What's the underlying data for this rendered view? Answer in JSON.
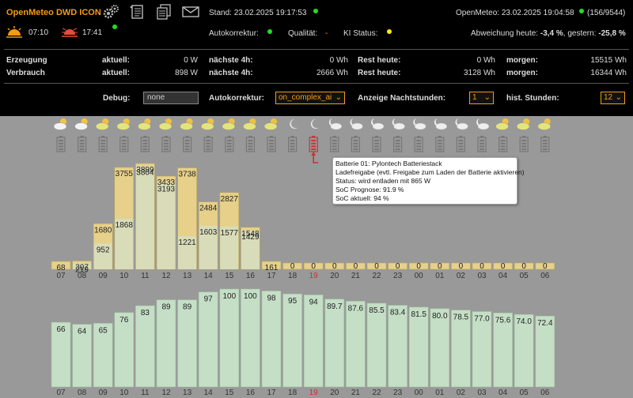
{
  "header": {
    "title": "OpenMeteo DWD ICON",
    "stand": "Stand: 23.02.2025 19:17:53",
    "openmeteo": "OpenMeteo: 23.02.2025 19:04:58",
    "counter": "(156/9544)",
    "sunrise": "07:10",
    "sunset": "17:41",
    "autokorrektur_label": "Autokorrektur:",
    "qualitaet_label": "Qualität:",
    "qualitaet_value": "-",
    "ki_label": "KI Status:",
    "abweichung_label": "Abweichung heute:",
    "abweichung_today": "-3,4 %",
    "abweichung_sep": ", gestern:",
    "abweichung_yesterday": "-25,8 %"
  },
  "stats": {
    "rows": [
      {
        "label": "Erzeugung",
        "aktuell_label": "aktuell:",
        "aktuell": "0 W",
        "next_label": "nächste 4h:",
        "next": "0 Wh",
        "rest_label": "Rest heute:",
        "rest": "0 Wh",
        "morgen_label": "morgen:",
        "morgen": "15515 Wh"
      },
      {
        "label": "Verbrauch",
        "aktuell_label": "aktuell:",
        "aktuell": "898 W",
        "next_label": "nächste 4h:",
        "next": "2666 Wh",
        "rest_label": "Rest heute:",
        "rest": "3128 Wh",
        "morgen_label": "morgen:",
        "morgen": "16344 Wh"
      }
    ]
  },
  "settings": {
    "debug_label": "Debug:",
    "debug_value": "none",
    "auto_label": "Autokorrektur:",
    "auto_value": "on_complex_ai",
    "night_label": "Anzeige Nachtstunden:",
    "night_value": "1",
    "hist_label": "hist. Stunden:",
    "hist_value": "12"
  },
  "tooltip": {
    "line1": "Batterie 01: Pylontech Batteriestack",
    "line2": "Ladefreigabe (evtl. Freigabe zum Laden der Batterie aktivieren)",
    "line3": "Status: wird entladen mit 865 W",
    "line4": "SoC Prognose: 91.9 %",
    "line5": "SoC aktuell: 94 %"
  },
  "colors": {
    "accent": "#f39c12",
    "green_dot": "#22dd22",
    "yellow_dot": "#ffee00",
    "pv_bar": "#e6d08a",
    "hist_bar": "#d8dcb9",
    "soc_bar": "#c5dfc6",
    "current_hour": "#d32f2f"
  },
  "chart_data": [
    {
      "type": "bar",
      "title": "",
      "categories": [
        "07",
        "08",
        "09",
        "10",
        "11",
        "12",
        "13",
        "14",
        "15",
        "16",
        "17",
        "18",
        "19",
        "20",
        "21",
        "22",
        "23",
        "00",
        "01",
        "02",
        "03",
        "04",
        "05",
        "06"
      ],
      "series": [
        {
          "values": [
            68,
            307,
            1680,
            3755,
            3899,
            3433,
            3738,
            2484,
            2827,
            1548,
            161,
            0,
            0,
            0,
            0,
            0,
            0,
            0,
            0,
            0,
            0,
            0,
            0,
            0
          ]
        },
        {
          "values": [
            null,
            219,
            952,
            1868,
            3804,
            3193,
            1221,
            1603,
            1577,
            1429,
            null,
            null,
            null,
            null,
            null,
            null,
            null,
            null,
            null,
            null,
            null,
            null,
            null,
            null
          ]
        }
      ],
      "highlight_category": "19"
    },
    {
      "type": "bar",
      "title": "",
      "categories": [
        "07",
        "08",
        "09",
        "10",
        "11",
        "12",
        "13",
        "14",
        "15",
        "16",
        "17",
        "18",
        "19",
        "20",
        "21",
        "22",
        "23",
        "00",
        "01",
        "02",
        "03",
        "04",
        "05",
        "06"
      ],
      "values": [
        66,
        64,
        65,
        76,
        83,
        89,
        89,
        97,
        100,
        100,
        98,
        95,
        94,
        89.7,
        87.6,
        85.5,
        83.4,
        81.5,
        80.0,
        78.5,
        77.0,
        75.6,
        74.0,
        72.4
      ],
      "value_labels": [
        "66",
        "64",
        "65",
        "76",
        "83",
        "89",
        "89",
        "97",
        "100",
        "100",
        "98",
        "95",
        "94",
        "89.7",
        "87.6",
        "85.5",
        "83.4",
        "81.5",
        "80.0",
        "78.5",
        "77.0",
        "75.6",
        "74.0",
        "72.4"
      ],
      "highlight_category": "19"
    }
  ],
  "weather_icons": [
    "partly-cloudy-sun-icon",
    "partly-cloudy-sun-icon",
    "cloud-sun-icon",
    "cloud-sun-icon",
    "cloud-sun-icon",
    "cloud-sun-icon",
    "cloud-sun-icon",
    "cloud-sun-icon",
    "cloud-sun-icon",
    "cloud-sun-icon",
    "cloud-sun-icon",
    "moon-icon",
    "moon-icon",
    "moon-cloud-icon",
    "cloud-moon-icon",
    "moon-cloud-icon",
    "moon-cloud-icon",
    "moon-cloud-icon",
    "cloud-moon-icon",
    "cloud-moon-icon",
    "cloud-moon-icon",
    "cloud-sun-icon",
    "cloud-sun-icon",
    "cloud-sun-icon"
  ]
}
